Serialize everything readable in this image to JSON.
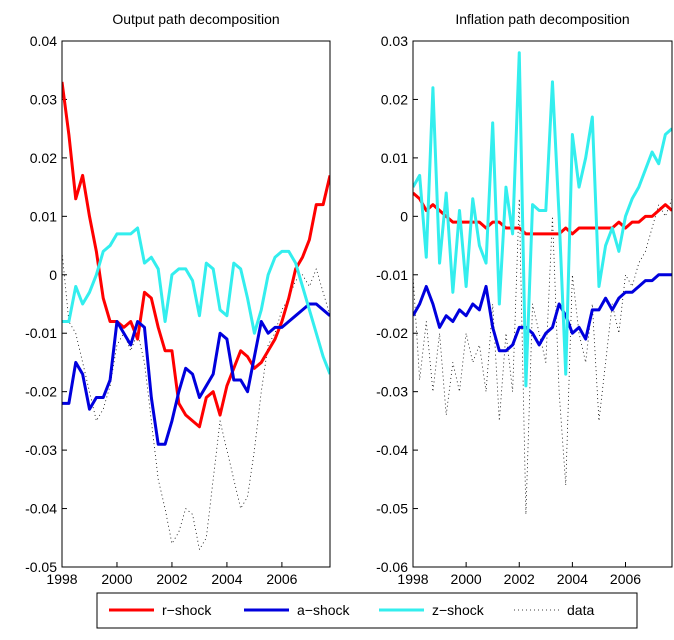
{
  "chart_data": [
    {
      "type": "line",
      "title": "Output path decomposition",
      "x": [
        1998,
        1998.25,
        1998.5,
        1998.75,
        1999,
        1999.25,
        1999.5,
        1999.75,
        2000,
        2000.25,
        2000.5,
        2000.75,
        2001,
        2001.25,
        2001.5,
        2001.75,
        2002,
        2002.25,
        2002.5,
        2002.75,
        2003,
        2003.25,
        2003.5,
        2003.75,
        2004,
        2004.25,
        2004.5,
        2004.75,
        2005,
        2005.25,
        2005.5,
        2005.75,
        2006,
        2006.25,
        2006.5,
        2006.75,
        2007,
        2007.25,
        2007.5,
        2007.75
      ],
      "xlim": [
        1998,
        2007.75
      ],
      "xticks": [
        1998,
        2000,
        2002,
        2004,
        2006
      ],
      "ylim": [
        -0.05,
        0.04
      ],
      "yticks": [
        -0.05,
        -0.04,
        -0.03,
        -0.02,
        -0.01,
        0,
        0.01,
        0.02,
        0.03,
        0.04
      ],
      "series": [
        {
          "name": "r−shock",
          "color": "#ff0000",
          "linestyle": "solid",
          "values": [
            0.033,
            0.024,
            0.013,
            0.017,
            0.01,
            0.004,
            -0.004,
            -0.008,
            -0.008,
            -0.009,
            -0.008,
            -0.011,
            -0.003,
            -0.004,
            -0.009,
            -0.013,
            -0.013,
            -0.022,
            -0.024,
            -0.025,
            -0.026,
            -0.021,
            -0.02,
            -0.024,
            -0.019,
            -0.016,
            -0.013,
            -0.014,
            -0.016,
            -0.015,
            -0.013,
            -0.011,
            -0.008,
            -0.004,
            0.001,
            0.003,
            0.006,
            0.012,
            0.012,
            0.017
          ]
        },
        {
          "name": "a−shock",
          "color": "#0000dd",
          "linestyle": "solid",
          "values": [
            -0.022,
            -0.022,
            -0.015,
            -0.017,
            -0.023,
            -0.021,
            -0.021,
            -0.018,
            -0.008,
            -0.01,
            -0.012,
            -0.008,
            -0.009,
            -0.021,
            -0.029,
            -0.029,
            -0.025,
            -0.02,
            -0.016,
            -0.017,
            -0.021,
            -0.019,
            -0.017,
            -0.01,
            -0.011,
            -0.018,
            -0.018,
            -0.02,
            -0.014,
            -0.008,
            -0.01,
            -0.009,
            -0.009,
            -0.008,
            -0.007,
            -0.006,
            -0.005,
            -0.005,
            -0.006,
            -0.007
          ]
        },
        {
          "name": "z−shock",
          "color": "#33eeee",
          "linestyle": "solid",
          "values": [
            -0.008,
            -0.008,
            -0.002,
            -0.005,
            -0.003,
            0.0,
            0.004,
            0.005,
            0.007,
            0.007,
            0.007,
            0.008,
            0.002,
            0.003,
            0.001,
            -0.008,
            0.0,
            0.001,
            0.001,
            -0.001,
            -0.007,
            0.002,
            0.001,
            -0.006,
            -0.007,
            0.002,
            0.001,
            -0.004,
            -0.01,
            -0.006,
            0.0,
            0.003,
            0.004,
            0.004,
            0.002,
            -0.002,
            -0.006,
            -0.01,
            -0.014,
            -0.017
          ]
        },
        {
          "name": "data",
          "color": "#000000",
          "linestyle": "dotted",
          "values": [
            0.004,
            -0.008,
            -0.01,
            -0.015,
            -0.02,
            -0.025,
            -0.023,
            -0.019,
            -0.012,
            -0.01,
            -0.013,
            -0.01,
            -0.015,
            -0.025,
            -0.035,
            -0.04,
            -0.046,
            -0.044,
            -0.04,
            -0.041,
            -0.047,
            -0.045,
            -0.035,
            -0.025,
            -0.03,
            -0.035,
            -0.04,
            -0.038,
            -0.03,
            -0.02,
            -0.012,
            -0.01,
            -0.006,
            -0.004,
            -0.001,
            0.0,
            -0.002,
            0.001,
            -0.003,
            -0.007
          ]
        }
      ]
    },
    {
      "type": "line",
      "title": "Inflation path decomposition",
      "x": [
        1998,
        1998.25,
        1998.5,
        1998.75,
        1999,
        1999.25,
        1999.5,
        1999.75,
        2000,
        2000.25,
        2000.5,
        2000.75,
        2001,
        2001.25,
        2001.5,
        2001.75,
        2002,
        2002.25,
        2002.5,
        2002.75,
        2003,
        2003.25,
        2003.5,
        2003.75,
        2004,
        2004.25,
        2004.5,
        2004.75,
        2005,
        2005.25,
        2005.5,
        2005.75,
        2006,
        2006.25,
        2006.5,
        2006.75,
        2007,
        2007.25,
        2007.5,
        2007.75
      ],
      "xlim": [
        1998,
        2007.75
      ],
      "xticks": [
        1998,
        2000,
        2002,
        2004,
        2006
      ],
      "ylim": [
        -0.06,
        0.03
      ],
      "yticks": [
        -0.06,
        -0.05,
        -0.04,
        -0.03,
        -0.02,
        -0.01,
        0,
        0.01,
        0.02,
        0.03
      ],
      "series": [
        {
          "name": "r−shock",
          "color": "#ff0000",
          "linestyle": "solid",
          "values": [
            0.004,
            0.003,
            0.001,
            0.002,
            0.001,
            0.0,
            -0.001,
            -0.001,
            -0.001,
            -0.001,
            -0.001,
            -0.002,
            -0.001,
            -0.001,
            -0.002,
            -0.002,
            -0.002,
            -0.003,
            -0.003,
            -0.003,
            -0.003,
            -0.003,
            -0.003,
            -0.002,
            -0.003,
            -0.002,
            -0.002,
            -0.002,
            -0.002,
            -0.002,
            -0.002,
            -0.001,
            -0.002,
            -0.001,
            -0.001,
            0.0,
            0.0,
            0.001,
            0.002,
            0.001
          ]
        },
        {
          "name": "a−shock",
          "color": "#0000dd",
          "linestyle": "solid",
          "values": [
            -0.017,
            -0.015,
            -0.012,
            -0.015,
            -0.019,
            -0.017,
            -0.018,
            -0.016,
            -0.017,
            -0.015,
            -0.016,
            -0.012,
            -0.019,
            -0.023,
            -0.023,
            -0.022,
            -0.019,
            -0.019,
            -0.02,
            -0.022,
            -0.02,
            -0.019,
            -0.015,
            -0.017,
            -0.02,
            -0.019,
            -0.021,
            -0.016,
            -0.016,
            -0.014,
            -0.016,
            -0.014,
            -0.013,
            -0.013,
            -0.012,
            -0.011,
            -0.011,
            -0.01,
            -0.01,
            -0.01
          ]
        },
        {
          "name": "z−shock",
          "color": "#33eeee",
          "linestyle": "solid",
          "values": [
            0.005,
            0.007,
            -0.007,
            0.022,
            -0.008,
            0.004,
            -0.013,
            0.001,
            -0.012,
            0.003,
            -0.005,
            -0.008,
            0.016,
            -0.015,
            0.005,
            -0.003,
            0.028,
            -0.029,
            0.002,
            0.001,
            0.001,
            0.023,
            0.0,
            -0.027,
            0.014,
            0.005,
            0.01,
            0.017,
            -0.012,
            -0.005,
            -0.002,
            -0.006,
            0.0,
            0.003,
            0.005,
            0.008,
            0.011,
            0.009,
            0.014,
            0.015
          ]
        },
        {
          "name": "data",
          "color": "#000000",
          "linestyle": "dotted",
          "values": [
            -0.01,
            -0.028,
            -0.018,
            -0.03,
            -0.02,
            -0.034,
            -0.025,
            -0.03,
            -0.02,
            -0.025,
            -0.022,
            -0.03,
            -0.015,
            -0.035,
            -0.02,
            -0.03,
            0.003,
            -0.051,
            -0.015,
            -0.02,
            -0.025,
            0.0,
            -0.03,
            -0.046,
            -0.01,
            -0.02,
            -0.025,
            -0.015,
            -0.035,
            -0.025,
            -0.015,
            -0.02,
            -0.01,
            -0.012,
            -0.008,
            -0.006,
            -0.002,
            0.002,
            0.0,
            0.003
          ]
        }
      ]
    }
  ]
}
